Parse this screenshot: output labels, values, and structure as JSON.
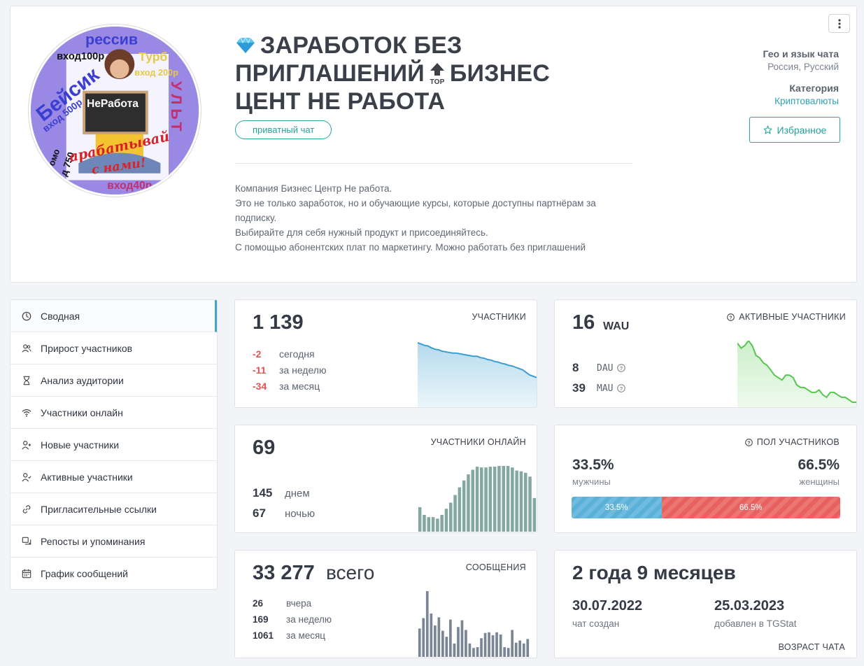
{
  "header": {
    "title_part1": "ЗАРАБОТОК БЕЗ ПРИГЛАШЕНИЙ",
    "title_part2": "БИЗНЕС ЦЕНТ НЕ РАБОТА",
    "tag": "приватный чат",
    "description": [
      "Компания Бизнес Центр Не работа.",
      "Это не только заработок, но и обучающие курсы, которые доступны партнёрам за подписку.",
      "Выбирайте для себя нужный продукт и присоединяйтесь.",
      "С помощью абонентских плат по маркетингу. Можно работать без приглашений"
    ],
    "geo_label": "Гео и язык чата",
    "geo_value": "Россия, Русский",
    "category_label": "Категория",
    "category_value": "Криптовалюты",
    "favorite_label": "Избранное",
    "avatar_text": {
      "t1": "рессив",
      "t2": "вход100р",
      "t3": "Турб",
      "t4": "вход 200р",
      "t5": "Бейсик",
      "t6": "вход 500р",
      "t7": "НеРабота",
      "t8": "УЛЬТ",
      "t9": "омо",
      "t10": "д 750",
      "t11": "арабатывай",
      "t12": "с нами!",
      "t13": "вход40р"
    }
  },
  "sidebar": {
    "items": [
      {
        "label": "Сводная",
        "icon": "dashboard-icon"
      },
      {
        "label": "Прирост участников",
        "icon": "users-icon"
      },
      {
        "label": "Анализ аудитории",
        "icon": "hourglass-icon"
      },
      {
        "label": "Участники онлайн",
        "icon": "wifi-icon"
      },
      {
        "label": "Новые участники",
        "icon": "user-plus-icon"
      },
      {
        "label": "Активные участники",
        "icon": "user-check-icon"
      },
      {
        "label": "Пригласительные ссылки",
        "icon": "link-icon"
      },
      {
        "label": "Репосты и упоминания",
        "icon": "repost-icon"
      },
      {
        "label": "График сообщений",
        "icon": "calendar-icon"
      }
    ]
  },
  "members": {
    "count": "1 139",
    "caption": "УЧАСТНИКИ",
    "rows": [
      {
        "value": "-2",
        "label": "сегодня"
      },
      {
        "value": "-11",
        "label": "за неделю"
      },
      {
        "value": "-34",
        "label": "за месяц"
      }
    ],
    "trend": [
      100,
      98,
      96,
      95,
      92,
      90,
      89,
      87,
      86,
      85,
      84,
      84,
      83,
      82,
      81,
      80,
      79,
      79,
      77,
      76,
      74,
      73,
      71,
      70,
      68,
      67,
      65,
      64,
      62,
      60,
      58,
      54,
      50,
      48,
      46
    ]
  },
  "active": {
    "count": "16",
    "unit": "WAU",
    "caption": "АКТИВНЫЕ УЧАСТНИКИ",
    "rows": [
      {
        "value": "8",
        "label": "DAU"
      },
      {
        "value": "39",
        "label": "MAU"
      }
    ],
    "trend": [
      26,
      24,
      25,
      27,
      25,
      21,
      20,
      18,
      17,
      15,
      13,
      12,
      11,
      13,
      13,
      12,
      9,
      8,
      8,
      7,
      6,
      6,
      7,
      5,
      4,
      6,
      6,
      5,
      4,
      4,
      3,
      2,
      2
    ]
  },
  "online": {
    "count": "69",
    "caption": "УЧАСТНИКИ ОНЛАЙН",
    "rows": [
      {
        "value": "145",
        "label": "днем"
      },
      {
        "value": "67",
        "label": "ночью"
      }
    ],
    "bars": [
      32,
      22,
      19,
      19,
      17,
      22,
      30,
      38,
      48,
      58,
      67,
      75,
      81,
      85,
      84,
      84,
      85,
      85,
      86,
      86,
      86,
      84,
      80,
      79,
      77,
      72,
      44
    ]
  },
  "gender": {
    "caption": "ПОЛ УЧАСТНИКОВ",
    "male_percent": "33.5%",
    "male_label": "мужчины",
    "female_percent": "66.5%",
    "female_label": "женщины",
    "male_share": 0.335,
    "male_color": "#5bb0d8",
    "female_color": "#e8615f"
  },
  "messages": {
    "total": "33 277",
    "total_label": "всего",
    "caption": "СООБЩЕНИЯ",
    "rows": [
      {
        "value": "26",
        "label": "вчера"
      },
      {
        "value": "169",
        "label": "за неделю"
      },
      {
        "value": "1061",
        "label": "за месяц"
      }
    ],
    "bars": [
      38,
      52,
      88,
      58,
      42,
      53,
      35,
      27,
      50,
      18,
      40,
      49,
      36,
      18,
      12,
      13,
      25,
      32,
      33,
      29,
      33,
      30,
      13,
      12,
      36,
      19,
      22,
      18,
      24
    ]
  },
  "age": {
    "title": "2 года 9 месяцев",
    "created_date": "30.07.2022",
    "created_label": "чат создан",
    "added_date": "25.03.2023",
    "added_label": "добавлен в TGStat",
    "caption": "ВОЗРАСТ ЧАТА"
  }
}
